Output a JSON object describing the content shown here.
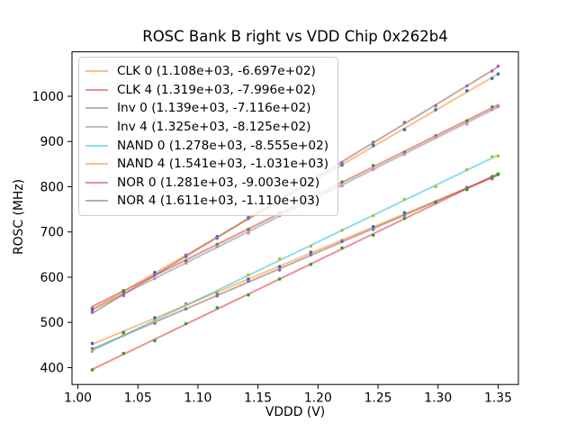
{
  "chart_data": {
    "type": "scatter",
    "title": "ROSC Bank B right vs VDD Chip 0x262b4",
    "xlabel": "VDDD (V)",
    "ylabel": "ROSC (MHz)",
    "grid": false,
    "legend_position": "upper left",
    "xlim": [
      0.9951,
      1.3669
    ],
    "ylim": [
      362.7,
      1098.3
    ],
    "xticks": [
      {
        "v": 1.0,
        "label": "1.00"
      },
      {
        "v": 1.05,
        "label": "1.05"
      },
      {
        "v": 1.1,
        "label": "1.10"
      },
      {
        "v": 1.15,
        "label": "1.15"
      },
      {
        "v": 1.2,
        "label": "1.20"
      },
      {
        "v": 1.25,
        "label": "1.25"
      },
      {
        "v": 1.3,
        "label": "1.30"
      },
      {
        "v": 1.35,
        "label": "1.35"
      }
    ],
    "yticks": [
      {
        "v": 400,
        "label": "400"
      },
      {
        "v": 500,
        "label": "500"
      },
      {
        "v": 600,
        "label": "600"
      },
      {
        "v": 700,
        "label": "700"
      },
      {
        "v": 800,
        "label": "800"
      },
      {
        "v": 900,
        "label": "900"
      },
      {
        "v": 1000,
        "label": "1000"
      }
    ],
    "x": [
      1.012,
      1.038,
      1.064,
      1.09,
      1.116,
      1.142,
      1.168,
      1.194,
      1.22,
      1.246,
      1.272,
      1.298,
      1.324,
      1.345,
      1.35
    ],
    "series": [
      {
        "name": "CLK 0",
        "label": "CLK 0 (1.108e+03, -6.697e+02)",
        "fit": {
          "slope": 1108,
          "intercept": -669.7
        },
        "line_color": "#ff7f0e",
        "line_alpha": 0.5,
        "point_color": "#1f77b4",
        "y": [
          453.6,
          477.4,
          510.2,
          541.0,
          564.8,
          595.6,
          623.4,
          655.3,
          679.1,
          711.9,
          742.7,
          766.5,
          797.3,
          819.6,
          828.1
        ]
      },
      {
        "name": "CLK 4",
        "label": "CLK 4 (1.319e+03, -7.996e+02)",
        "fit": {
          "slope": 1319,
          "intercept": -799.6
        },
        "line_color": "#d62728",
        "line_alpha": 0.5,
        "point_color": "#2ca02c",
        "y": [
          532.2,
          570.5,
          606.8,
          636.1,
          672.4,
          705.7,
          743.0,
          772.3,
          810.6,
          846.9,
          876.2,
          912.5,
          945.8,
          976.5,
          978.1
        ]
      },
      {
        "name": "Inv 0",
        "label": "Inv 0 (1.139e+03, -7.116e+02)",
        "fit": {
          "slope": 1139,
          "intercept": -711.6
        },
        "line_color": "#8c564b",
        "line_alpha": 0.5,
        "point_color": "#9467bd",
        "y": [
          442.1,
          473.7,
          498.3,
          529.9,
          558.5,
          591.2,
          615.8,
          649.4,
          681.0,
          705.6,
          737.2,
          765.8,
          798.4,
          817.3,
          827.1
        ]
      },
      {
        "name": "Inv 4",
        "label": "Inv 4 (1.325e+03, -8.125e+02)",
        "fit": {
          "slope": 1325,
          "intercept": -812.5
        },
        "line_color": "#7f7f7f",
        "line_alpha": 0.5,
        "point_color": "#e377c2",
        "y": [
          531.4,
          560.9,
          597.3,
          630.8,
          668.2,
          697.7,
          736.1,
          772.6,
          802.0,
          838.5,
          871.9,
          909.4,
          938.8,
          970.6,
          979.3
        ]
      },
      {
        "name": "NAND 0",
        "label": "NAND 0 (1.278e+03, -8.555e+02)",
        "fit": {
          "slope": 1278,
          "intercept": -855.5
        },
        "line_color": "#17becf",
        "line_alpha": 0.5,
        "point_color": "#bcbd22",
        "y": [
          435.8,
          471.1,
          503.3,
          539.5,
          567.7,
          605.0,
          640.2,
          668.4,
          703.7,
          735.9,
          772.1,
          800.3,
          837.6,
          866.4,
          867.8
        ]
      },
      {
        "name": "NAND 4",
        "label": "NAND 4 (1.541e+03, -1.031e+03)",
        "fit": {
          "slope": 1541,
          "intercept": -1031
        },
        "line_color": "#ff7f0e",
        "line_alpha": 0.5,
        "point_color": "#1f77b4",
        "y": [
          528.5,
          567.6,
          610.6,
          645.7,
          689.8,
          731.8,
          766.9,
          809.0,
          848.0,
          891.1,
          926.2,
          970.2,
          1012.3,
          1039.6,
          1049.4
        ]
      },
      {
        "name": "NOR 0",
        "label": "NOR 0 (1.281e+03, -9.003e+02)",
        "fit": {
          "slope": 1281,
          "intercept": -900.3
        },
        "line_color": "#d62728",
        "line_alpha": 0.5,
        "point_color": "#2ca02c",
        "y": [
          395.1,
          431.4,
          459.7,
          497.0,
          532.3,
          560.6,
          595.9,
          628.2,
          664.5,
          692.8,
          730.1,
          765.4,
          793.7,
          822.6,
          828.1
        ]
      },
      {
        "name": "NOR 4",
        "label": "NOR 4 (1.611e+03, -1.110e+03)",
        "fit": {
          "slope": 1611,
          "intercept": -1110
        },
        "line_color": "#8c564b",
        "line_alpha": 0.5,
        "point_color": "#9467bd",
        "y": [
          522.3,
          559.2,
          605.1,
          649.0,
          685.9,
          729.8,
          770.6,
          815.5,
          852.4,
          898.3,
          942.2,
          979.1,
          1023.0,
          1055.8,
          1066.9
        ]
      }
    ]
  }
}
